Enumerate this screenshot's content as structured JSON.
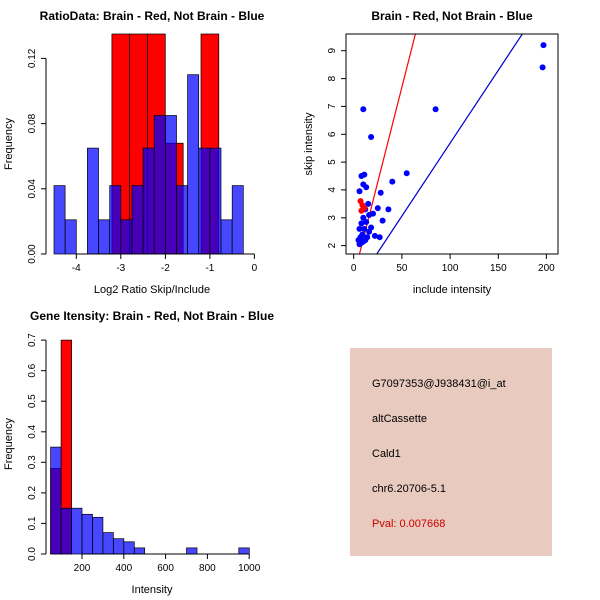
{
  "colors": {
    "brain_red": "#ff0000",
    "not_brain_blue": "#0000ff",
    "scatter_line_red": "#ff0000",
    "scatter_line_blue": "#0000cc",
    "info_bg": "#e8cabf",
    "pval_red": "#cc0000",
    "axis": "#000000"
  },
  "chart_data": [
    {
      "panel": "top-left",
      "type": "histogram",
      "title": "RatioData: Brain - Red, Not Brain - Blue",
      "xlabel": "Log2 Ratio Skip/Include",
      "ylabel": "Frequency",
      "xlim": [
        -4.68,
        0.08
      ],
      "ylim": [
        0,
        0.135
      ],
      "xticks": [
        -4,
        -3,
        -2,
        -1,
        0
      ],
      "xtick_labels": [
        "-4",
        "-3",
        "-2",
        "-1",
        "0"
      ],
      "yticks": [
        0,
        0.04,
        0.08,
        0.12
      ],
      "ytick_labels": [
        "0.00",
        "0.04",
        "0.08",
        "0.12"
      ],
      "grid": false,
      "legend": "none",
      "series": [
        {
          "name": "brain",
          "color": "#ff0000",
          "opacity": 1,
          "bins": [
            [
              -3.2,
              -2.8,
              0.135
            ],
            [
              -2.8,
              -2.4,
              0.135
            ],
            [
              -2.4,
              -2.0,
              0.135
            ],
            [
              -2.0,
              -1.6,
              0.068
            ],
            [
              -1.2,
              -0.8,
              0.135
            ]
          ]
        },
        {
          "name": "not_brain",
          "color": "#0000ff",
          "opacity": 0.72,
          "bins": [
            [
              -4.5,
              -4.25,
              0.042
            ],
            [
              -4.25,
              -4.0,
              0.021
            ],
            [
              -3.75,
              -3.5,
              0.065
            ],
            [
              -3.5,
              -3.25,
              0.021
            ],
            [
              -3.25,
              -3.0,
              0.042
            ],
            [
              -3.0,
              -2.75,
              0.021
            ],
            [
              -2.75,
              -2.5,
              0.042
            ],
            [
              -2.5,
              -2.25,
              0.065
            ],
            [
              -2.25,
              -2.0,
              0.085
            ],
            [
              -2.0,
              -1.75,
              0.085
            ],
            [
              -1.75,
              -1.5,
              0.042
            ],
            [
              -1.5,
              -1.25,
              0.11
            ],
            [
              -1.25,
              -1.0,
              0.065
            ],
            [
              -1.0,
              -0.75,
              0.065
            ],
            [
              -0.75,
              -0.5,
              0.021
            ],
            [
              -0.5,
              -0.25,
              0.042
            ]
          ]
        }
      ]
    },
    {
      "panel": "top-right",
      "type": "scatter",
      "title": "Brain - Red, Not Brain - Blue",
      "xlabel": "include intensity",
      "ylabel": "skip intensity",
      "xlim": [
        -8,
        212
      ],
      "ylim": [
        1.7,
        9.6
      ],
      "xticks": [
        0,
        50,
        100,
        150,
        200
      ],
      "xtick_labels": [
        "0",
        "50",
        "100",
        "150",
        "200"
      ],
      "yticks": [
        2,
        3,
        4,
        5,
        6,
        7,
        8,
        9
      ],
      "ytick_labels": [
        "2",
        "3",
        "4",
        "5",
        "6",
        "7",
        "8",
        "9"
      ],
      "frame": true,
      "grid": false,
      "legend": "none",
      "point_series": [
        {
          "name": "not_brain",
          "color": "#0000ff",
          "points": [
            [
              6,
              2.05
            ],
            [
              8,
              2.1
            ],
            [
              10,
              2.15
            ],
            [
              5,
              2.2
            ],
            [
              12,
              2.2
            ],
            [
              7,
              2.3
            ],
            [
              14,
              2.3
            ],
            [
              9,
              2.4
            ],
            [
              22,
              2.35
            ],
            [
              27,
              2.3
            ],
            [
              16,
              2.5
            ],
            [
              6,
              2.6
            ],
            [
              11,
              2.6
            ],
            [
              18,
              2.65
            ],
            [
              8,
              2.8
            ],
            [
              13,
              2.85
            ],
            [
              30,
              2.9
            ],
            [
              10,
              3.0
            ],
            [
              16,
              3.1
            ],
            [
              20,
              3.15
            ],
            [
              12,
              3.3
            ],
            [
              25,
              3.35
            ],
            [
              36,
              3.3
            ],
            [
              15,
              3.5
            ],
            [
              28,
              3.9
            ],
            [
              6,
              3.95
            ],
            [
              13,
              4.1
            ],
            [
              10,
              4.2
            ],
            [
              40,
              4.3
            ],
            [
              8,
              4.5
            ],
            [
              11,
              4.55
            ],
            [
              55,
              4.6
            ],
            [
              18,
              5.9
            ],
            [
              10,
              6.9
            ],
            [
              85,
              6.9
            ],
            [
              196,
              8.4
            ],
            [
              197,
              9.2
            ]
          ]
        },
        {
          "name": "brain",
          "color": "#ff0000",
          "points": [
            [
              7,
              3.6
            ],
            [
              9,
              3.45
            ],
            [
              11,
              3.35
            ],
            [
              8,
              3.25
            ]
          ]
        }
      ],
      "lines": [
        {
          "name": "brain_fit",
          "color": "#ff0000",
          "x": [
            6,
            64
          ],
          "y": [
            1.7,
            9.6
          ]
        },
        {
          "name": "not_brain_fit",
          "color": "#0000cc",
          "x": [
            24,
            175
          ],
          "y": [
            1.7,
            9.6
          ]
        }
      ]
    },
    {
      "panel": "bottom-left",
      "type": "histogram",
      "title": "Gene Itensity: Brain - Red, Not Brain - Blue",
      "xlabel": "Intensity",
      "ylabel": "Frequency",
      "xlim": [
        28,
        1042
      ],
      "ylim": [
        0,
        0.72
      ],
      "xticks": [
        200,
        400,
        600,
        800,
        1000
      ],
      "xtick_labels": [
        "200",
        "400",
        "600",
        "800",
        "1000"
      ],
      "yticks": [
        0,
        0.1,
        0.2,
        0.3,
        0.4,
        0.5,
        0.6,
        0.7
      ],
      "ytick_labels": [
        "0.0",
        "0.1",
        "0.2",
        "0.3",
        "0.4",
        "0.5",
        "0.6",
        "0.7"
      ],
      "grid": false,
      "legend": "none",
      "series": [
        {
          "name": "brain",
          "color": "#ff0000",
          "opacity": 1,
          "bins": [
            [
              50,
              100,
              0.28
            ],
            [
              100,
              150,
              0.7
            ]
          ]
        },
        {
          "name": "not_brain",
          "color": "#0000ff",
          "opacity": 0.72,
          "bins": [
            [
              50,
              100,
              0.35
            ],
            [
              100,
              150,
              0.15
            ],
            [
              150,
              200,
              0.15
            ],
            [
              200,
              250,
              0.13
            ],
            [
              250,
              300,
              0.12
            ],
            [
              300,
              350,
              0.07
            ],
            [
              350,
              400,
              0.05
            ],
            [
              400,
              450,
              0.04
            ],
            [
              450,
              500,
              0.02
            ],
            [
              700,
              750,
              0.02
            ],
            [
              950,
              1000,
              0.02
            ]
          ]
        }
      ]
    }
  ],
  "info_panel": {
    "probe_id": "G7097353@J938431@i_at",
    "splice_type": "altCassette",
    "gene": "Cald1",
    "location": "chr6.20706-5.1",
    "pval": "Pval: 0.007668"
  }
}
